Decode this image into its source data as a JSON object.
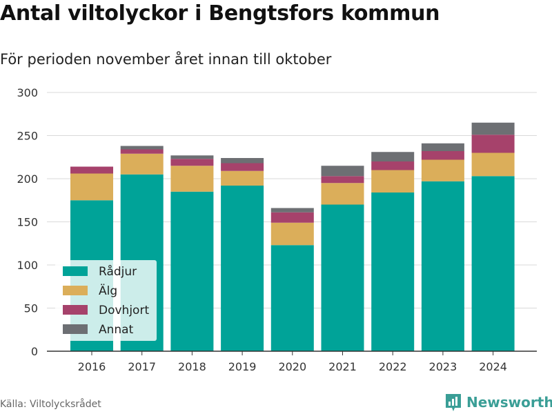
{
  "header": {
    "title": "Antal viltolyckor i Bengtsfors kommun",
    "subtitle": "För perioden november året innan till oktober"
  },
  "footer": {
    "source": "Källa: Viltolycksrådet",
    "brand": "Newsworthy",
    "brand_icon": "bar-chart-icon",
    "brand_color": "#3a9e96"
  },
  "chart_data": {
    "type": "bar",
    "stacked": true,
    "categories": [
      "2016",
      "2017",
      "2018",
      "2019",
      "2020",
      "2021",
      "2022",
      "2023",
      "2024"
    ],
    "series": [
      {
        "name": "Rådjur",
        "color": "#00a398",
        "values": [
          175,
          205,
          185,
          192,
          123,
          170,
          184,
          197,
          203
        ]
      },
      {
        "name": "Älg",
        "color": "#dbae5a",
        "values": [
          31,
          24,
          30,
          17,
          26,
          25,
          26,
          25,
          27
        ]
      },
      {
        "name": "Dovhjort",
        "color": "#a6426b",
        "values": [
          8,
          5,
          8,
          9,
          12,
          8,
          10,
          10,
          21
        ]
      },
      {
        "name": "Annat",
        "color": "#6d6f73",
        "values": [
          0,
          4,
          4,
          6,
          5,
          12,
          11,
          9,
          14
        ]
      }
    ],
    "ylim": [
      0,
      300
    ],
    "yticks": [
      0,
      50,
      100,
      150,
      200,
      250,
      300
    ],
    "grid": true,
    "legend_position": "bottom-left"
  }
}
